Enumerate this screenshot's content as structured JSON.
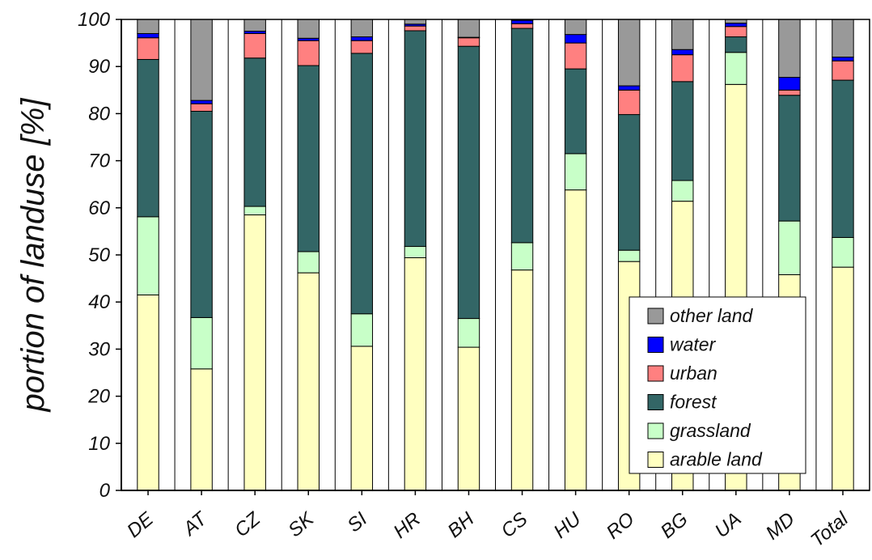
{
  "chart_data": {
    "type": "bar",
    "stacked": true,
    "ylabel": "portion of landuse [%]",
    "xlabel": "",
    "ylim": [
      0,
      100
    ],
    "yticks": [
      0,
      10,
      20,
      30,
      40,
      50,
      60,
      70,
      80,
      90,
      100
    ],
    "grid": "vertical",
    "legend_position": "bottom-right",
    "categories": [
      "DE",
      "AT",
      "CZ",
      "SK",
      "SI",
      "HR",
      "BH",
      "CS",
      "HU",
      "RO",
      "BG",
      "UA",
      "MD",
      "Total"
    ],
    "series": [
      {
        "name": "arable land",
        "color": "#ffffc0",
        "values": [
          41.5,
          25.8,
          58.5,
          46.2,
          30.6,
          49.4,
          30.4,
          46.8,
          63.8,
          48.6,
          61.4,
          86.2,
          45.8,
          47.4
        ]
      },
      {
        "name": "grassland",
        "color": "#c8ffc8",
        "values": [
          16.6,
          10.9,
          1.8,
          4.5,
          6.9,
          2.4,
          6.1,
          5.8,
          7.7,
          2.4,
          4.4,
          6.8,
          11.4,
          6.3
        ]
      },
      {
        "name": "forest",
        "color": "#336666",
        "values": [
          33.4,
          43.8,
          31.5,
          39.5,
          55.3,
          45.8,
          57.8,
          45.5,
          18.0,
          28.8,
          21.0,
          3.3,
          26.7,
          33.4
        ]
      },
      {
        "name": "urban",
        "color": "#ff8080",
        "values": [
          4.6,
          1.6,
          5.2,
          5.3,
          2.7,
          1.0,
          1.8,
          1.0,
          5.5,
          5.2,
          5.7,
          2.2,
          1.1,
          4.1
        ]
      },
      {
        "name": "water",
        "color": "#0000ff",
        "values": [
          0.9,
          0.7,
          0.5,
          0.5,
          0.8,
          0.4,
          0.1,
          0.7,
          1.8,
          0.9,
          1.1,
          0.7,
          2.7,
          0.8
        ]
      },
      {
        "name": "other land",
        "color": "#999999",
        "values": [
          3.0,
          17.2,
          2.5,
          4.0,
          3.7,
          1.0,
          3.8,
          0.2,
          3.2,
          14.1,
          6.4,
          0.8,
          12.3,
          8.0
        ]
      }
    ]
  }
}
